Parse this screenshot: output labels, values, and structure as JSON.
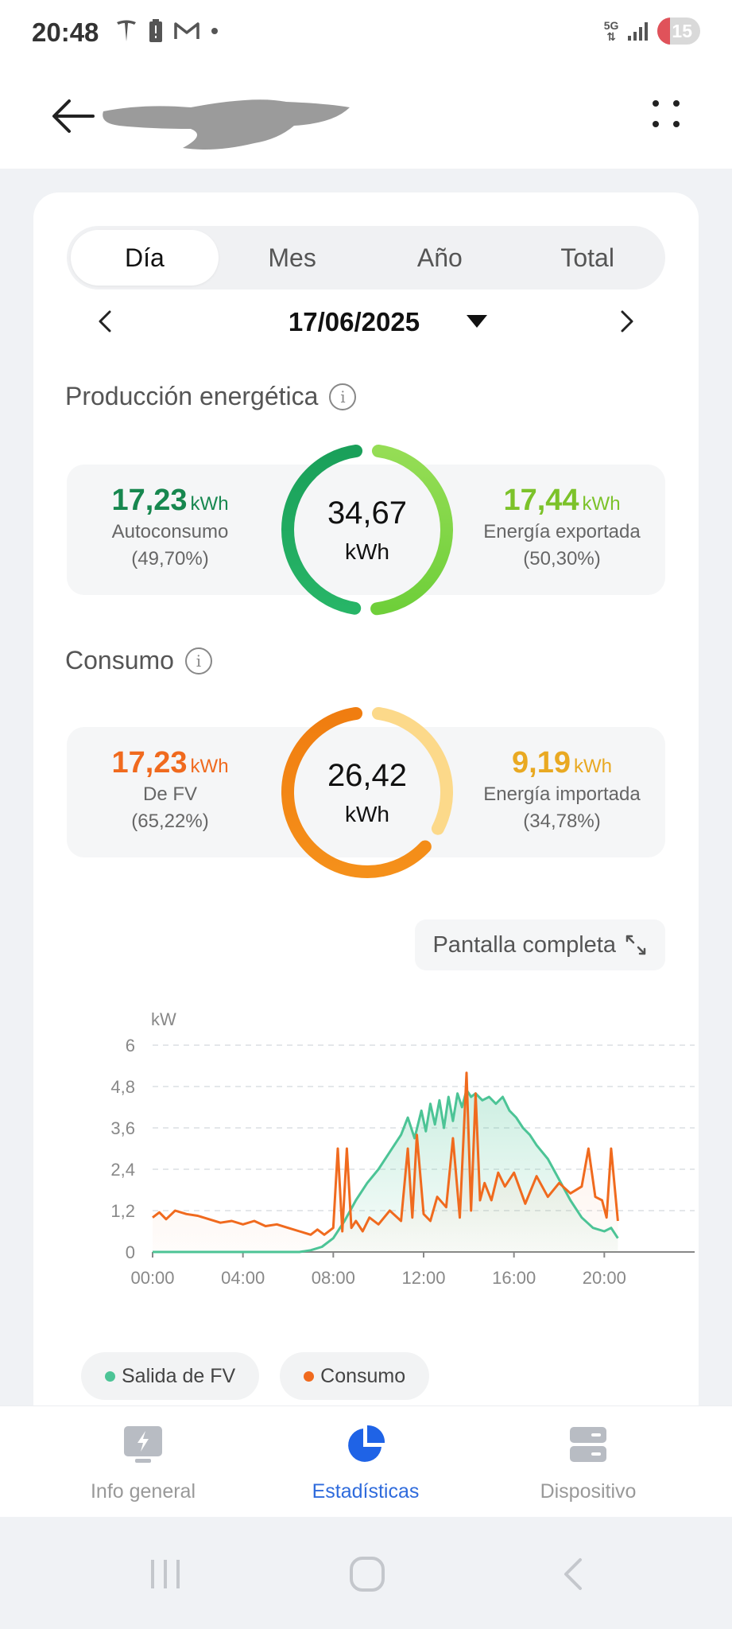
{
  "status_bar": {
    "time": "20:48",
    "network": "5G",
    "battery": "15"
  },
  "header": {
    "back_icon": "arrow-left-icon",
    "more_icon": "dots-grid-icon"
  },
  "tabs": [
    {
      "label": "Día",
      "active": true
    },
    {
      "label": "Mes",
      "active": false
    },
    {
      "label": "Año",
      "active": false
    },
    {
      "label": "Total",
      "active": false
    }
  ],
  "date": {
    "value": "17/06/2025"
  },
  "production": {
    "title": "Producción energética",
    "total": "34,67",
    "unit": "kWh",
    "left": {
      "value": "17,23",
      "unit": "kWh",
      "label": "Autoconsumo",
      "percent": "(49,70%)",
      "color": "#17874f",
      "share": 0.497
    },
    "right": {
      "value": "17,44",
      "unit": "kWh",
      "label": "Energía exportada",
      "percent": "(50,30%)",
      "color": "#7cc22a",
      "share": 0.503
    }
  },
  "consumption": {
    "title": "Consumo",
    "total": "26,42",
    "unit": "kWh",
    "left": {
      "value": "17,23",
      "unit": "kWh",
      "label": "De FV",
      "percent": "(65,22%)",
      "color": "#f06a1e",
      "share": 0.6522
    },
    "right": {
      "value": "9,19",
      "unit": "kWh",
      "label": "Energía importada",
      "percent": "(34,78%)",
      "color": "#e9a922",
      "share": 0.3478
    }
  },
  "fullscreen": {
    "label": "Pantalla completa"
  },
  "chart_data": {
    "type": "line",
    "ylabel": "kW",
    "ylim": [
      0,
      6
    ],
    "yticks": [
      "0",
      "1,2",
      "2,4",
      "3,6",
      "4,8",
      "6"
    ],
    "xlim": [
      0,
      24
    ],
    "xticks": [
      "00:00",
      "04:00",
      "08:00",
      "12:00",
      "16:00",
      "20:00"
    ],
    "grid": true,
    "legend_position": "bottom",
    "series": [
      {
        "name": "Salida de FV",
        "color": "#4cc496",
        "x": [
          0,
          4,
          6.5,
          7,
          7.5,
          8,
          8.5,
          9,
          9.5,
          10,
          10.5,
          11,
          11.3,
          11.6,
          11.9,
          12.1,
          12.3,
          12.5,
          12.7,
          12.9,
          13.1,
          13.3,
          13.5,
          13.7,
          13.9,
          14.1,
          14.3,
          14.6,
          14.9,
          15.2,
          15.5,
          15.8,
          16.1,
          16.4,
          16.7,
          17,
          17.5,
          18,
          18.5,
          19,
          19.5,
          20,
          20.3,
          20.6
        ],
        "y": [
          0,
          0,
          0,
          0.05,
          0.15,
          0.4,
          0.9,
          1.5,
          2.0,
          2.4,
          2.9,
          3.4,
          3.9,
          3.3,
          4.1,
          3.5,
          4.3,
          3.7,
          4.4,
          3.6,
          4.5,
          3.8,
          4.6,
          4.2,
          4.7,
          4.5,
          4.6,
          4.4,
          4.5,
          4.3,
          4.5,
          4.1,
          3.9,
          3.6,
          3.4,
          3.1,
          2.7,
          2.1,
          1.5,
          1.0,
          0.7,
          0.6,
          0.7,
          0.4
        ]
      },
      {
        "name": "Consumo",
        "color": "#f06a1e",
        "x": [
          0,
          0.3,
          0.6,
          1,
          1.5,
          2,
          2.5,
          3,
          3.5,
          4,
          4.5,
          5,
          5.5,
          6,
          6.5,
          7,
          7.3,
          7.6,
          8,
          8.2,
          8.4,
          8.6,
          8.8,
          9,
          9.3,
          9.6,
          10,
          10.5,
          11,
          11.3,
          11.5,
          11.7,
          12,
          12.3,
          12.6,
          13,
          13.3,
          13.6,
          13.9,
          14.1,
          14.3,
          14.5,
          14.7,
          15,
          15.3,
          15.6,
          16,
          16.5,
          17,
          17.5,
          18,
          18.5,
          19,
          19.3,
          19.6,
          19.9,
          20.1,
          20.3,
          20.6
        ],
        "y": [
          1.0,
          1.15,
          0.95,
          1.2,
          1.1,
          1.05,
          0.95,
          0.85,
          0.9,
          0.8,
          0.9,
          0.75,
          0.8,
          0.7,
          0.6,
          0.5,
          0.65,
          0.5,
          0.7,
          3.0,
          0.6,
          3.0,
          0.7,
          0.9,
          0.6,
          1.0,
          0.8,
          1.2,
          0.9,
          3.0,
          1.0,
          3.4,
          1.1,
          0.9,
          1.6,
          1.3,
          3.3,
          1.0,
          5.2,
          1.2,
          4.6,
          1.5,
          2.0,
          1.5,
          2.3,
          1.9,
          2.3,
          1.4,
          2.2,
          1.6,
          2.0,
          1.7,
          1.9,
          3.0,
          1.6,
          1.5,
          1.0,
          3.0,
          0.9
        ]
      }
    ]
  },
  "nav": [
    {
      "label": "Info general",
      "icon": "monitor-bolt-icon",
      "active": false
    },
    {
      "label": "Estadísticas",
      "icon": "pie-chart-icon",
      "active": true
    },
    {
      "label": "Dispositivo",
      "icon": "server-icon",
      "active": false
    }
  ],
  "system_nav": {
    "recent_icon": "recent-apps-icon",
    "home_icon": "home-icon",
    "back_icon": "back-chevron-icon"
  }
}
